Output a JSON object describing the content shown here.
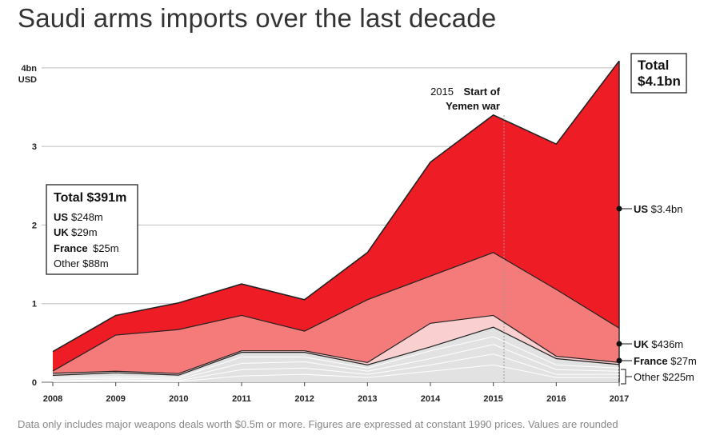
{
  "title": "Saudi arms imports over the last decade",
  "footnote": "Data only includes major weapons deals worth $0.5m or more. Figures are expressed at constant 1990 prices. Values are rounded",
  "colors": {
    "us": "#ee1c25",
    "uk": "#f57b7b",
    "france": "#f9cfcf",
    "other": "#e2e2e2",
    "grid": "#bdbdbd"
  },
  "chart_data": {
    "type": "area",
    "stacked": true,
    "title": "Saudi arms imports over the last decade",
    "x": [
      2008,
      2009,
      2010,
      2011,
      2012,
      2013,
      2014,
      2015,
      2016,
      2017
    ],
    "ylim": [
      0,
      4.1
    ],
    "y_ticks": [
      {
        "value": 0,
        "label": "0"
      },
      {
        "value": 1,
        "label": "1"
      },
      {
        "value": 2,
        "label": "2"
      },
      {
        "value": 3,
        "label": "3"
      },
      {
        "value": 4,
        "label": "4bn",
        "sublabel": "USD"
      }
    ],
    "series": [
      {
        "name": "Other",
        "color": "#e2e2e2",
        "values": [
          0.088,
          0.12,
          0.09,
          0.38,
          0.38,
          0.22,
          0.45,
          0.7,
          0.3,
          0.225
        ]
      },
      {
        "name": "France",
        "color": "#f9cfcf",
        "values": [
          0.025,
          0.02,
          0.02,
          0.02,
          0.02,
          0.03,
          0.3,
          0.15,
          0.03,
          0.027
        ]
      },
      {
        "name": "UK",
        "color": "#f57b7b",
        "values": [
          0.029,
          0.46,
          0.56,
          0.45,
          0.25,
          0.8,
          0.6,
          0.8,
          0.85,
          0.436
        ]
      },
      {
        "name": "US",
        "color": "#ee1c25",
        "values": [
          0.248,
          0.25,
          0.34,
          0.4,
          0.4,
          0.6,
          1.45,
          1.75,
          1.85,
          3.4
        ]
      }
    ],
    "other_detail_lines": [
      [
        0.06,
        0.07,
        0.06,
        0.32,
        0.32,
        0.18,
        0.4,
        0.58,
        0.22,
        0.18
      ],
      [
        0.04,
        0.05,
        0.04,
        0.24,
        0.26,
        0.14,
        0.3,
        0.48,
        0.16,
        0.14
      ],
      [
        0.02,
        0.03,
        0.02,
        0.16,
        0.18,
        0.1,
        0.22,
        0.36,
        0.1,
        0.1
      ],
      [
        0.01,
        0.02,
        0.01,
        0.08,
        0.1,
        0.06,
        0.14,
        0.22,
        0.06,
        0.06
      ]
    ],
    "annotations": {
      "war_year": 2015,
      "war_year_label": "2015",
      "war_label_1": "Start of",
      "war_label_2": "Yemen war",
      "total_2017_line1": "Total",
      "total_2017_line2": "$4.1bn",
      "us_2017_name": "US",
      "us_2017_value": "$3.4bn",
      "uk_2017_name": "UK",
      "uk_2017_value": "$436m",
      "france_2017_name": "France",
      "france_2017_value": "$27m",
      "other_2017": "Other $225m",
      "total_2008": "Total $391m",
      "us_2008_name": "US",
      "us_2008_value": "$248m",
      "uk_2008_name": "UK",
      "uk_2008_value": "$29m",
      "france_2008_name": "France",
      "france_2008_value": "$25m",
      "other_2008": "Other $88m"
    }
  }
}
